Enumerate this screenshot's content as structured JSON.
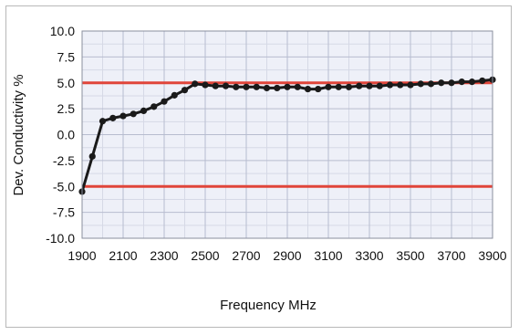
{
  "chart_data": {
    "type": "line",
    "title": "",
    "xlabel": "Frequency MHz",
    "ylabel": "Dev. Conductivity %",
    "xlim": [
      1900,
      3900
    ],
    "ylim": [
      -10,
      10
    ],
    "x_ticks": [
      1900,
      2100,
      2300,
      2500,
      2700,
      2900,
      3100,
      3300,
      3500,
      3700,
      3900
    ],
    "x_tick_labels": [
      "1900",
      "2100",
      "2300",
      "2500",
      "2700",
      "2900",
      "3100",
      "3300",
      "3500",
      "3700",
      "3900"
    ],
    "y_ticks": [
      10,
      7.5,
      5,
      2.5,
      0,
      -2.5,
      -5,
      -7.5,
      -10
    ],
    "y_tick_labels": [
      "10.0",
      "7.5",
      "5.0",
      "2.5",
      "0.0",
      "-2.5",
      "-5.0",
      "-7.5",
      "-10.0"
    ],
    "grid": true,
    "limit_lines": [
      5,
      -5
    ],
    "colors": {
      "series": "#1a1a1a",
      "limit": "#e0453a",
      "plot_bg": "#eef0f8",
      "grid_major": "#b7bccf",
      "grid_minor": "#d6d9e6"
    },
    "series": [
      {
        "x": [
          1900,
          1950,
          2000,
          2050,
          2100,
          2150,
          2200,
          2250,
          2300,
          2350,
          2400,
          2450,
          2500,
          2550,
          2600,
          2650,
          2700,
          2750,
          2800,
          2850,
          2900,
          2950,
          3000,
          3050,
          3100,
          3150,
          3200,
          3250,
          3300,
          3350,
          3400,
          3450,
          3500,
          3550,
          3600,
          3650,
          3700,
          3750,
          3800,
          3850,
          3900
        ],
        "y": [
          -5.5,
          -2.1,
          1.3,
          1.6,
          1.8,
          2.0,
          2.3,
          2.7,
          3.2,
          3.8,
          4.3,
          4.9,
          4.8,
          4.7,
          4.7,
          4.6,
          4.6,
          4.6,
          4.5,
          4.5,
          4.6,
          4.6,
          4.4,
          4.4,
          4.6,
          4.6,
          4.6,
          4.7,
          4.7,
          4.7,
          4.8,
          4.8,
          4.8,
          4.9,
          4.9,
          5.0,
          5.0,
          5.1,
          5.1,
          5.2,
          5.3
        ]
      }
    ]
  }
}
